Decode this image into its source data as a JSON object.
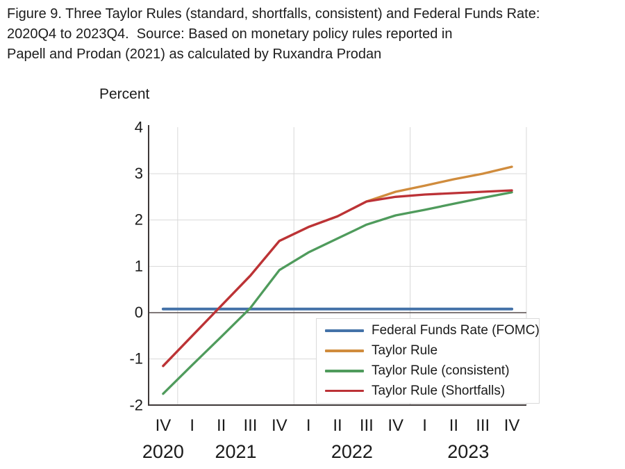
{
  "figure": {
    "title_lines": [
      "Figure 9. Three Taylor Rules (standard, shortfalls, consistent) and Federal Funds Rate:",
      "2020Q4 to 2023Q4.  Source: Based on monetary policy rules reported in",
      "Papell and Prodan (2021) as calculated by Ruxandra Prodan"
    ]
  },
  "chart_data": {
    "type": "line",
    "ylabel": "Percent",
    "ylim": [
      -2,
      4
    ],
    "yticks": [
      4,
      3,
      2,
      1,
      0,
      -1,
      -2
    ],
    "x_categories": [
      "2020Q4",
      "2021Q1",
      "2021Q2",
      "2021Q3",
      "2021Q4",
      "2022Q1",
      "2022Q2",
      "2022Q3",
      "2022Q4",
      "2023Q1",
      "2023Q2",
      "2023Q3",
      "2023Q4"
    ],
    "x_quarter_labels": [
      "IV",
      "I",
      "II",
      "III",
      "IV",
      "I",
      "II",
      "III",
      "IV",
      "I",
      "II",
      "III",
      "IV"
    ],
    "year_groups": [
      {
        "label": "2020",
        "start": 0,
        "end": 0
      },
      {
        "label": "2021",
        "start": 1,
        "end": 4
      },
      {
        "label": "2022",
        "start": 5,
        "end": 8
      },
      {
        "label": "2023",
        "start": 9,
        "end": 12
      }
    ],
    "series": [
      {
        "name": "Federal Funds Rate (FOMC)",
        "color": "#4472a8",
        "line_width": 4,
        "values": [
          0.08,
          0.08,
          0.08,
          0.08,
          0.08,
          0.08,
          0.08,
          0.08,
          0.08,
          0.08,
          0.08,
          0.08,
          0.08
        ]
      },
      {
        "name": "Taylor Rule",
        "color": "#d08c3d",
        "line_width": 3.3,
        "values": [
          -1.15,
          -0.5,
          0.15,
          0.8,
          1.55,
          1.85,
          2.08,
          2.4,
          2.61,
          2.74,
          2.88,
          3.0,
          3.15
        ]
      },
      {
        "name": "Taylor Rule (consistent)",
        "color": "#4f9b5c",
        "line_width": 3.3,
        "values": [
          -1.75,
          -1.13,
          -0.52,
          0.1,
          0.92,
          1.3,
          1.6,
          1.9,
          2.1,
          2.22,
          2.35,
          2.48,
          2.6
        ]
      },
      {
        "name": "Taylor Rule (Shortfalls)",
        "color": "#bc3237",
        "line_width": 3.3,
        "values": [
          -1.15,
          -0.5,
          0.15,
          0.8,
          1.55,
          1.85,
          2.08,
          2.4,
          2.5,
          2.55,
          2.58,
          2.61,
          2.64
        ]
      }
    ],
    "legend_position": "inside-bottom-right",
    "grid": true,
    "colors": {
      "gridline": "#d9d9d9",
      "axis": "#3e3838",
      "zero_line": "#574c4c",
      "tick_text": "#1a1a1a"
    }
  }
}
